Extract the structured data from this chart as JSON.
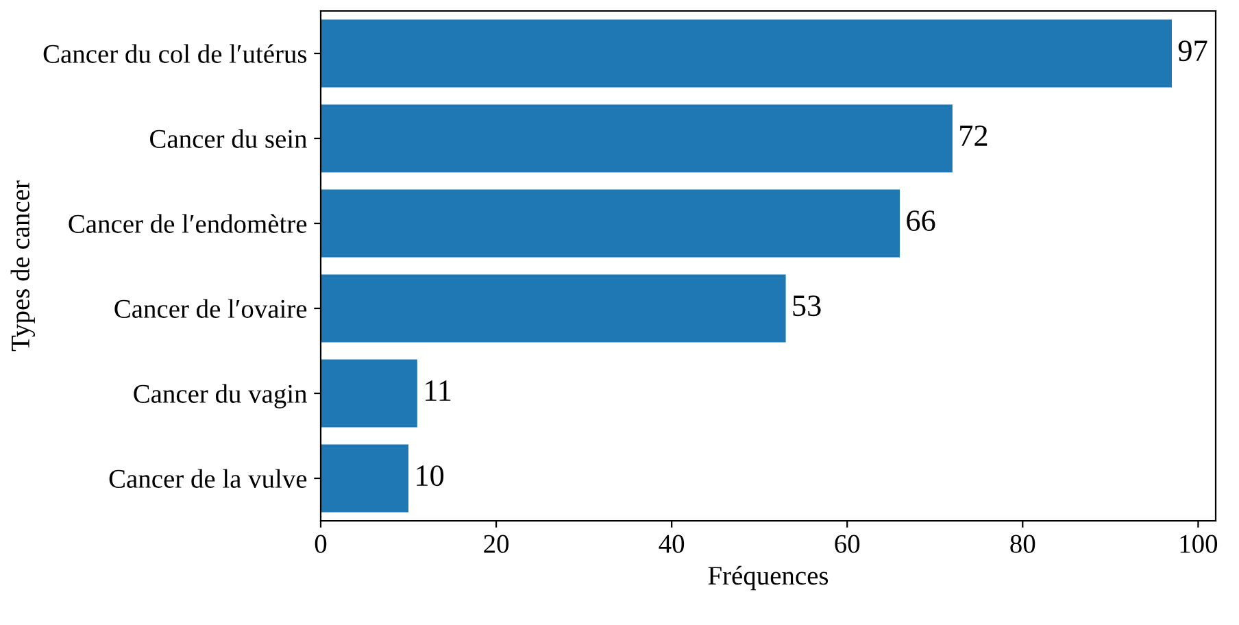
{
  "chart_data": {
    "type": "bar",
    "orientation": "horizontal",
    "xlabel": "Fréquences",
    "ylabel": "Types de cancer",
    "categories": [
      "Cancer du col de l′utérus",
      "Cancer du sein",
      "Cancer de l′endomètre",
      "Cancer de l′ovaire",
      "Cancer du vagin",
      "Cancer de la vulve"
    ],
    "values": [
      97,
      72,
      66,
      53,
      11,
      10
    ],
    "color": "#1f77b4",
    "data_labels": true,
    "xlim": [
      0,
      102
    ],
    "xticks": [
      0,
      20,
      40,
      60,
      80,
      100
    ],
    "grid": false,
    "legend": false
  }
}
